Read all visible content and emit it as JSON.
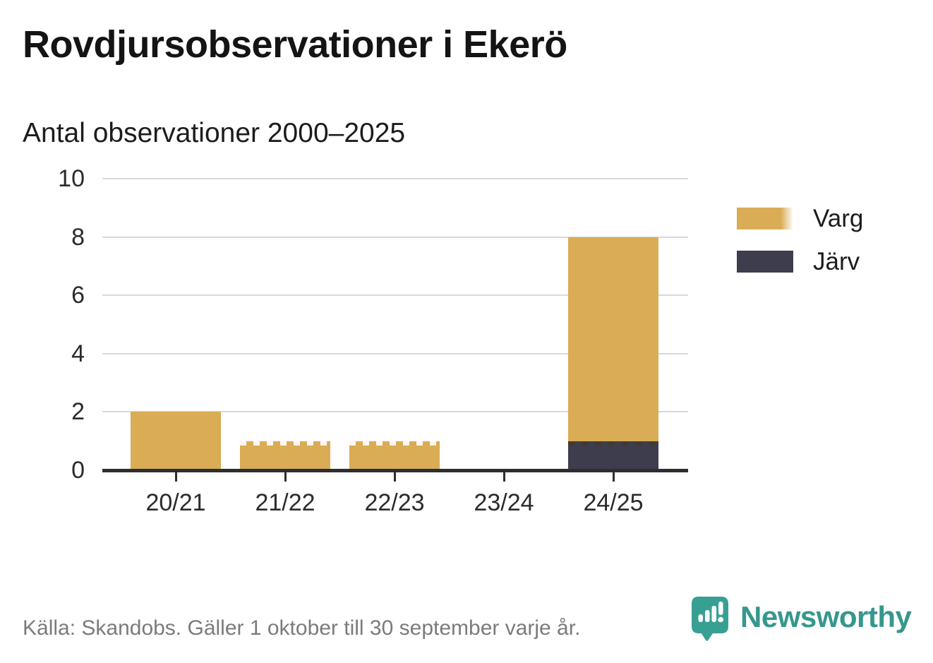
{
  "title": "Rovdjursobservationer i Ekerö",
  "subtitle": "Antal observationer 2000–2025",
  "footer": {
    "source": "Källa: Skandobs. Gäller 1 oktober till 30 september varje år."
  },
  "brand": {
    "name": "Newsworthy",
    "icon": "newsworthy-speech-bubble-chart-icon",
    "icon_color": "#38A093",
    "text_color": "#35978E"
  },
  "colors": {
    "varg": "#D9AC55",
    "jarv": "#3E3D4D",
    "axis": "#2E2E2E",
    "grid": "#D9D9D9",
    "text": "#2B2B2B",
    "muted": "#7B7B7B",
    "dash_light": "#FFFFFF",
    "dash_dark": "#463827"
  },
  "legend": [
    {
      "label": "Varg",
      "color": "#D9AC55",
      "fade_right": true
    },
    {
      "label": "Järv",
      "color": "#3E3D4D",
      "fade_right": false
    }
  ],
  "chart_data": {
    "type": "bar",
    "stacked": true,
    "title": "Rovdjursobservationer i Ekerö",
    "subtitle": "Antal observationer 2000–2025",
    "xlabel": "",
    "ylabel": "",
    "categories": [
      "20/21",
      "21/22",
      "22/23",
      "23/24",
      "24/25"
    ],
    "series": [
      {
        "name": "Varg",
        "color": "#D9AC55",
        "values": [
          2,
          1,
          1,
          0,
          7
        ]
      },
      {
        "name": "Järv",
        "color": "#3E3D4D",
        "values": [
          0,
          0,
          0,
          0,
          1
        ]
      }
    ],
    "stack_order_bottom_to_top": [
      "Järv",
      "Varg"
    ],
    "totals": [
      2,
      1,
      1,
      0,
      8
    ],
    "ylim": [
      0,
      10
    ],
    "yticks": [
      0,
      2,
      4,
      6,
      8,
      10
    ],
    "grid": true,
    "legend_position": "right",
    "dashed_segment_tops": [
      {
        "category": "21/22",
        "series": "Varg"
      },
      {
        "category": "22/23",
        "series": "Varg"
      },
      {
        "category": "24/25",
        "series": "Järv"
      }
    ]
  }
}
